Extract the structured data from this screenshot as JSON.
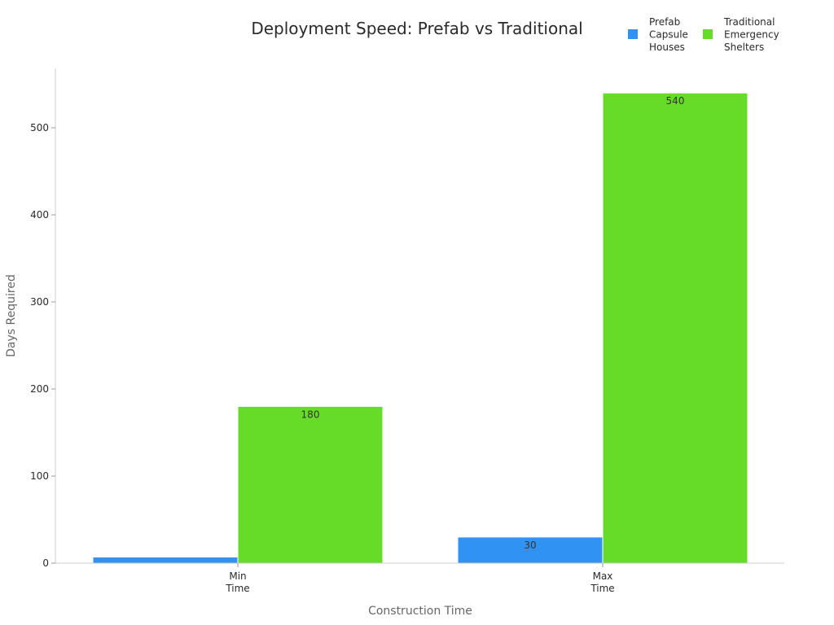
{
  "chart_data": {
    "type": "bar",
    "title": "Deployment Speed: Prefab vs Traditional",
    "xlabel": "Construction Time",
    "ylabel": "Days Required",
    "categories": [
      [
        "Min",
        "Time"
      ],
      [
        "Max",
        "Time"
      ]
    ],
    "series": [
      {
        "name": "Prefab Capsule Houses",
        "legend_lines": [
          "Prefab",
          "Capsule",
          "Houses"
        ],
        "color": "#3092f2",
        "values": [
          7,
          30
        ],
        "labels": [
          "",
          "30"
        ]
      },
      {
        "name": "Traditional Emergency Shelters",
        "legend_lines": [
          "Traditional",
          "Emergency",
          "Shelters"
        ],
        "color": "#66dc28",
        "values": [
          180,
          540
        ],
        "labels": [
          "180",
          "540"
        ]
      }
    ],
    "ylim": [
      0,
      567
    ],
    "yticks": [
      0,
      100,
      200,
      300,
      400,
      500
    ],
    "grid": false,
    "legend_position": "top-right"
  }
}
